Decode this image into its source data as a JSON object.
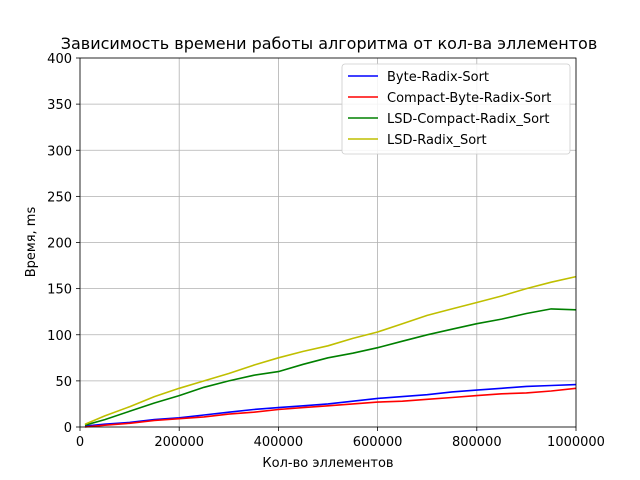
{
  "chart_data": {
    "type": "line",
    "title": "Зависимость времени работы алгоритма от кол-ва эллементов",
    "xlabel": "Кол-во эллементов",
    "ylabel": "Время, ms",
    "xlim": [
      0,
      1000000
    ],
    "ylim": [
      0,
      400
    ],
    "xticks": [
      0,
      200000,
      400000,
      600000,
      800000,
      1000000
    ],
    "yticks": [
      0,
      50,
      100,
      150,
      200,
      250,
      300,
      350,
      400
    ],
    "grid": true,
    "legend_position": "top-right",
    "x": [
      10000,
      50000,
      100000,
      150000,
      200000,
      250000,
      300000,
      350000,
      400000,
      450000,
      500000,
      550000,
      600000,
      650000,
      700000,
      750000,
      800000,
      850000,
      900000,
      950000,
      1000000
    ],
    "series": [
      {
        "name": "Byte-Radix-Sort",
        "color": "#0000ff",
        "values": [
          1,
          3,
          5,
          8,
          10,
          13,
          16,
          19,
          21,
          23,
          25,
          28,
          31,
          33,
          35,
          38,
          40,
          42,
          44,
          45,
          46
        ]
      },
      {
        "name": "Compact-Byte-Radix-Sort",
        "color": "#ff0000",
        "values": [
          0,
          2,
          4,
          7,
          9,
          11,
          14,
          16,
          19,
          21,
          23,
          25,
          27,
          28,
          30,
          32,
          34,
          36,
          37,
          39,
          42
        ]
      },
      {
        "name": "LSD-Compact-Radix_Sort",
        "color": "#008000",
        "values": [
          2,
          8,
          17,
          26,
          34,
          43,
          50,
          56,
          60,
          68,
          75,
          80,
          86,
          93,
          100,
          106,
          112,
          117,
          123,
          128,
          127
        ]
      },
      {
        "name": "LSD-Radix_Sort",
        "color": "#bfbf00",
        "values": [
          3,
          12,
          22,
          33,
          42,
          50,
          58,
          67,
          75,
          82,
          88,
          96,
          103,
          112,
          121,
          128,
          135,
          142,
          150,
          157,
          163
        ]
      }
    ]
  }
}
